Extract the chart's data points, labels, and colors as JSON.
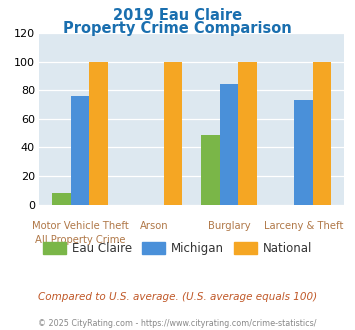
{
  "title_line1": "2019 Eau Claire",
  "title_line2": "Property Crime Comparison",
  "title_color": "#1a6faf",
  "groups": [
    {
      "label_upper": "Motor Vehicle Theft",
      "label_lower": "All Property Crime",
      "eau_claire": 8,
      "michigan": 76,
      "national": 100
    },
    {
      "label_upper": "Arson",
      "label_lower": "",
      "eau_claire": 0,
      "michigan": 0,
      "national": 100
    },
    {
      "label_upper": "Burglary",
      "label_lower": "",
      "eau_claire": 49,
      "michigan": 84,
      "national": 100
    },
    {
      "label_upper": "Larceny & Theft",
      "label_lower": "",
      "eau_claire": 0,
      "michigan": 73,
      "national": 100
    }
  ],
  "color_eau_claire": "#7ab648",
  "color_michigan": "#4a90d9",
  "color_national": "#f5a623",
  "ylim_max": 120,
  "ytick_step": 20,
  "plot_bg": "#dde8f0",
  "label_color": "#b07848",
  "footnote": "Compared to U.S. average. (U.S. average equals 100)",
  "footnote_color": "#c05828",
  "copyright": "© 2025 CityRating.com - https://www.cityrating.com/crime-statistics/",
  "copyright_color": "#888888",
  "legend_labels": [
    "Eau Claire",
    "Michigan",
    "National"
  ],
  "legend_text_color": "#333333"
}
